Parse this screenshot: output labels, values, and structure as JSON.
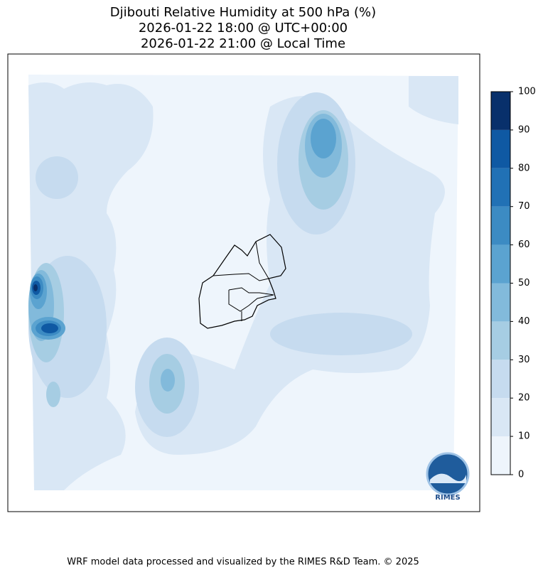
{
  "title": [
    "Djibouti Relative Humidity at 500 hPa (%)",
    "2026-01-22 18:00 @ UTC+00:00",
    "2026-01-22 21:00 @ Local Time"
  ],
  "colorbar": {
    "ticks": [
      0,
      10,
      20,
      30,
      40,
      50,
      60,
      70,
      80,
      90,
      100
    ],
    "colors": [
      "#eef5fc",
      "#d9e7f5",
      "#c6dbef",
      "#a6cde3",
      "#82badb",
      "#5ba3d0",
      "#3c8bc3",
      "#2171b5",
      "#0f59a3",
      "#08306b"
    ]
  },
  "logo": "RIMES",
  "footer": "WRF model data processed and visualized by the RIMES R&D Team. © 2025"
}
